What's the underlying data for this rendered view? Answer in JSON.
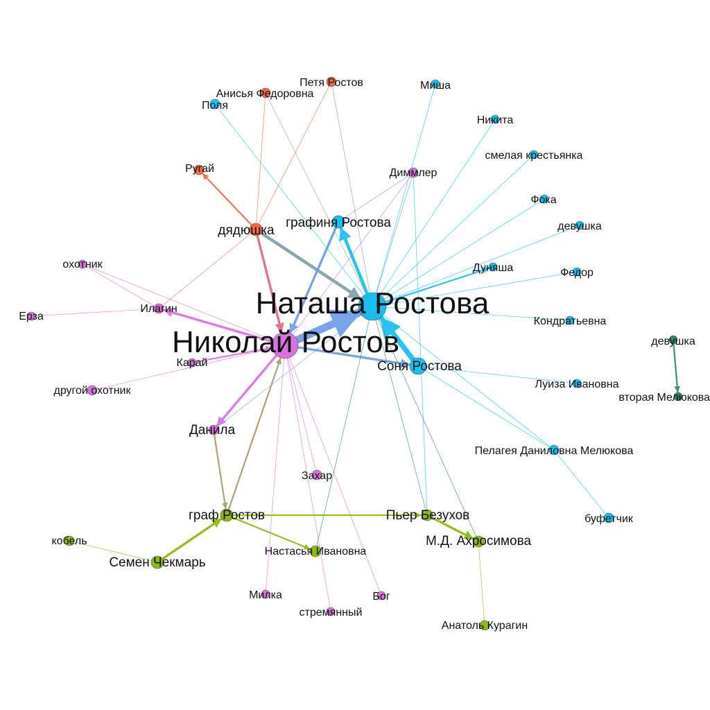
{
  "colors": {
    "cyan": "#16bff0",
    "magenta": "#d873dd",
    "olive": "#8cba12",
    "orange": "#ef6a46",
    "teal": "#2f8a5c",
    "slate": "#7fa0a8",
    "tan": "#a89a6a",
    "steel": "#6f9de6",
    "pink": "#e06a86",
    "node_stroke": "#555555"
  },
  "nodes": {
    "natasha": {
      "label": "Наташа Ростова",
      "color": "cyan",
      "size": "l"
    },
    "nikolai": {
      "label": "Николай Ростов",
      "color": "magenta",
      "size": "l"
    },
    "sonya": {
      "label": "Соня Ростова",
      "color": "cyan",
      "size": "m"
    },
    "grafinya": {
      "label": "графиня Ростова",
      "color": "cyan",
      "size": "m"
    },
    "dyadyushka": {
      "label": "дядюшка",
      "color": "orange",
      "size": "m"
    },
    "rugay": {
      "label": "Ругай",
      "color": "orange",
      "size": "s"
    },
    "anisya": {
      "label": "Анисья Федоровна",
      "color": "orange",
      "size": "s"
    },
    "petya": {
      "label": "Петя Ростов",
      "color": "orange",
      "size": "s"
    },
    "polya": {
      "label": "Поля",
      "color": "cyan",
      "size": "s"
    },
    "misha": {
      "label": "Миша",
      "color": "cyan",
      "size": "s"
    },
    "nikita": {
      "label": "Никита",
      "color": "cyan",
      "size": "s"
    },
    "smelaya": {
      "label": "смелая крестьянка",
      "color": "cyan",
      "size": "s"
    },
    "foka": {
      "label": "Фока",
      "color": "cyan",
      "size": "s"
    },
    "devushka1": {
      "label": "девушка",
      "color": "cyan",
      "size": "s"
    },
    "dunyasha": {
      "label": "Дуняша",
      "color": "cyan",
      "size": "s"
    },
    "fedor": {
      "label": "Федор",
      "color": "cyan",
      "size": "s"
    },
    "kondratevna": {
      "label": "Кондратьевна",
      "color": "cyan",
      "size": "s"
    },
    "luiza": {
      "label": "Луиза Ивановна",
      "color": "cyan",
      "size": "s"
    },
    "pelageya": {
      "label": "Пелагея Даниловна Мелюкова",
      "color": "cyan",
      "size": "s"
    },
    "bufetchik": {
      "label": "буфетчик",
      "color": "cyan",
      "size": "s"
    },
    "devushka2": {
      "label": "девушка",
      "color": "teal",
      "size": "s"
    },
    "vtoraya": {
      "label": "вторая Мелюкова",
      "color": "teal",
      "size": "s"
    },
    "dimmler": {
      "label": "Диммлер",
      "color": "magenta",
      "size": "s"
    },
    "okhotnik": {
      "label": "охотник",
      "color": "magenta",
      "size": "s"
    },
    "ilagin": {
      "label": "Илагин",
      "color": "magenta",
      "size": "s"
    },
    "erza": {
      "label": "Ерза",
      "color": "magenta",
      "size": "s"
    },
    "karay": {
      "label": "Карай",
      "color": "magenta",
      "size": "s"
    },
    "drugoy": {
      "label": "другой охотник",
      "color": "magenta",
      "size": "s"
    },
    "danila": {
      "label": "Данила",
      "color": "magenta",
      "size": "m"
    },
    "zakhar": {
      "label": "Захар",
      "color": "magenta",
      "size": "s"
    },
    "milka": {
      "label": "Милка",
      "color": "magenta",
      "size": "s"
    },
    "stremyanny": {
      "label": "стремянный",
      "color": "magenta",
      "size": "s"
    },
    "bog": {
      "label": "Бог",
      "color": "magenta",
      "size": "s"
    },
    "graf": {
      "label": "граф Ростов",
      "color": "olive",
      "size": "m"
    },
    "pierre": {
      "label": "Пьер Безухов",
      "color": "olive",
      "size": "m"
    },
    "akhrosimova": {
      "label": "М.Д. Ахросимова",
      "color": "olive",
      "size": "m"
    },
    "kobel": {
      "label": "кобель",
      "color": "olive",
      "size": "s"
    },
    "semen": {
      "label": "Семен Чекмарь",
      "color": "olive",
      "size": "m"
    },
    "nastasya": {
      "label": "Настасья Ивановна",
      "color": "olive",
      "size": "s"
    },
    "anatol": {
      "label": "Анатоль Курагин",
      "color": "olive",
      "size": "s"
    }
  },
  "edges": [
    {
      "from": "nikolai",
      "to": "natasha",
      "color": "steel",
      "weight": 10
    },
    {
      "from": "sonya",
      "to": "natasha",
      "color": "cyan",
      "weight": 7
    },
    {
      "from": "natasha",
      "to": "grafinya",
      "color": "cyan",
      "weight": 4
    },
    {
      "from": "dyadyushka",
      "to": "natasha",
      "color": "slate",
      "weight": 4
    },
    {
      "from": "nikolai",
      "to": "sonya",
      "color": "steel",
      "weight": 3
    },
    {
      "from": "grafinya",
      "to": "nikolai",
      "color": "steel",
      "weight": 3
    },
    {
      "from": "dyadyushka",
      "to": "nikolai",
      "color": "pink",
      "weight": 3
    },
    {
      "from": "dyadyushka",
      "to": "rugay",
      "color": "orange",
      "weight": 2
    },
    {
      "from": "nikolai",
      "to": "ilagin",
      "color": "magenta",
      "weight": 3
    },
    {
      "from": "nikolai",
      "to": "danila",
      "color": "magenta",
      "weight": 3
    },
    {
      "from": "karay",
      "to": "nikolai",
      "color": "magenta",
      "weight": 2
    },
    {
      "from": "drugoy",
      "to": "nikolai",
      "color": "magenta",
      "weight": 1
    },
    {
      "from": "graf",
      "to": "nikolai",
      "color": "tan",
      "weight": 2
    },
    {
      "from": "danila",
      "to": "graf",
      "color": "tan",
      "weight": 2
    },
    {
      "from": "semen",
      "to": "graf",
      "color": "olive",
      "weight": 3
    },
    {
      "from": "graf",
      "to": "pierre",
      "color": "olive",
      "weight": 2
    },
    {
      "from": "pierre",
      "to": "akhrosimova",
      "color": "olive",
      "weight": 3
    },
    {
      "from": "graf",
      "to": "nastasya",
      "color": "olive",
      "weight": 2
    },
    {
      "from": "kobel",
      "to": "semen",
      "color": "olive",
      "weight": 1
    },
    {
      "from": "anatol",
      "to": "akhrosimova",
      "color": "olive",
      "weight": 1
    },
    {
      "from": "natasha",
      "to": "dunyasha",
      "color": "cyan",
      "weight": 2
    },
    {
      "from": "natasha",
      "to": "misha",
      "color": "cyan",
      "weight": 1
    },
    {
      "from": "natasha",
      "to": "nikita",
      "color": "cyan",
      "weight": 1
    },
    {
      "from": "natasha",
      "to": "smelaya",
      "color": "cyan",
      "weight": 1
    },
    {
      "from": "natasha",
      "to": "foka",
      "color": "cyan",
      "weight": 1
    },
    {
      "from": "natasha",
      "to": "devushka1",
      "color": "cyan",
      "weight": 1
    },
    {
      "from": "natasha",
      "to": "fedor",
      "color": "cyan",
      "weight": 1
    },
    {
      "from": "natasha",
      "to": "kondratevna",
      "color": "cyan",
      "weight": 1
    },
    {
      "from": "natasha",
      "to": "polya",
      "color": "cyan",
      "weight": 1
    },
    {
      "from": "natasha",
      "to": "pelageya",
      "color": "cyan",
      "weight": 1
    },
    {
      "from": "sonya",
      "to": "luiza",
      "color": "cyan",
      "weight": 1
    },
    {
      "from": "sonya",
      "to": "pelageya",
      "color": "cyan",
      "weight": 1
    },
    {
      "from": "pelageya",
      "to": "bufetchik",
      "color": "cyan",
      "weight": 1
    },
    {
      "from": "natasha",
      "to": "dimmler",
      "color": "steel",
      "weight": 1
    },
    {
      "from": "nikolai",
      "to": "dimmler",
      "color": "magenta",
      "weight": 1
    },
    {
      "from": "dimmler",
      "to": "grafinya",
      "color": "steel",
      "weight": 1
    },
    {
      "from": "dimmler",
      "to": "pierre",
      "color": "cyan",
      "weight": 1
    },
    {
      "from": "petya",
      "to": "dyadyushka",
      "color": "orange",
      "weight": 1
    },
    {
      "from": "anisya",
      "to": "dyadyushka",
      "color": "orange",
      "weight": 1
    },
    {
      "from": "petya",
      "to": "natasha",
      "color": "slate",
      "weight": 1
    },
    {
      "from": "anisya",
      "to": "natasha",
      "color": "slate",
      "weight": 1
    },
    {
      "from": "dyadyushka",
      "to": "ilagin",
      "color": "pink",
      "weight": 1
    },
    {
      "from": "okhotnik",
      "to": "ilagin",
      "color": "magenta",
      "weight": 1
    },
    {
      "from": "okhotnik",
      "to": "nikolai",
      "color": "magenta",
      "weight": 1
    },
    {
      "from": "erza",
      "to": "ilagin",
      "color": "magenta",
      "weight": 1
    },
    {
      "from": "nikolai",
      "to": "zakhar",
      "color": "magenta",
      "weight": 1
    },
    {
      "from": "nikolai",
      "to": "milka",
      "color": "magenta",
      "weight": 1
    },
    {
      "from": "nikolai",
      "to": "stremyanny",
      "color": "magenta",
      "weight": 1
    },
    {
      "from": "nikolai",
      "to": "bog",
      "color": "magenta",
      "weight": 1
    },
    {
      "from": "natasha",
      "to": "nastasya",
      "color": "teal",
      "weight": 1
    },
    {
      "from": "natasha",
      "to": "pierre",
      "color": "teal",
      "weight": 1
    },
    {
      "from": "natasha",
      "to": "akhrosimova",
      "color": "teal",
      "weight": 1
    },
    {
      "from": "natasha",
      "to": "danila",
      "color": "steel",
      "weight": 1
    },
    {
      "from": "devushka2",
      "to": "vtoraya",
      "color": "teal",
      "weight": 2
    }
  ]
}
